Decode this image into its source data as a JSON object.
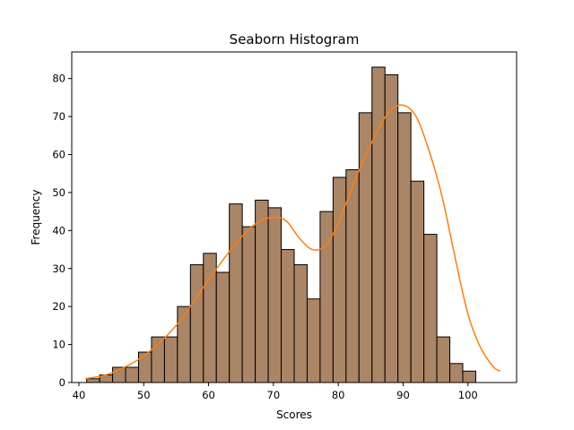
{
  "chart_data": {
    "type": "bar",
    "title": "Seaborn Histogram",
    "xlabel": "Scores",
    "ylabel": "Frequency",
    "xlim": [
      38.9,
      107.5
    ],
    "ylim": [
      0,
      87
    ],
    "xticks": [
      40,
      50,
      60,
      70,
      80,
      90,
      100
    ],
    "yticks": [
      0,
      10,
      20,
      30,
      40,
      50,
      60,
      70,
      80
    ],
    "bin_start": 41.2,
    "bin_width": 2.0,
    "counts": [
      1,
      2,
      4,
      4,
      8,
      12,
      12,
      20,
      31,
      34,
      29,
      47,
      41,
      48,
      46,
      35,
      31,
      22,
      45,
      54,
      56,
      71,
      83,
      81,
      71,
      53,
      39,
      12,
      5,
      3
    ],
    "kde": {
      "x": [
        41,
        45,
        50,
        55,
        60,
        63,
        66,
        68,
        70,
        72,
        74,
        76,
        78,
        80,
        83,
        86,
        88,
        90,
        92,
        94,
        96,
        98,
        100,
        102,
        104,
        105
      ],
      "y": [
        1,
        2.5,
        7,
        15,
        27,
        34,
        40,
        42.5,
        43.5,
        42.5,
        38,
        35,
        36,
        42,
        55,
        66,
        71.5,
        73,
        70,
        61,
        49,
        33,
        18,
        9,
        4,
        3
      ]
    },
    "bar_color": "#aa8566",
    "bar_edge_color": "#000000",
    "kde_color": "#ff7f0e",
    "grid": false,
    "legend": "none"
  }
}
